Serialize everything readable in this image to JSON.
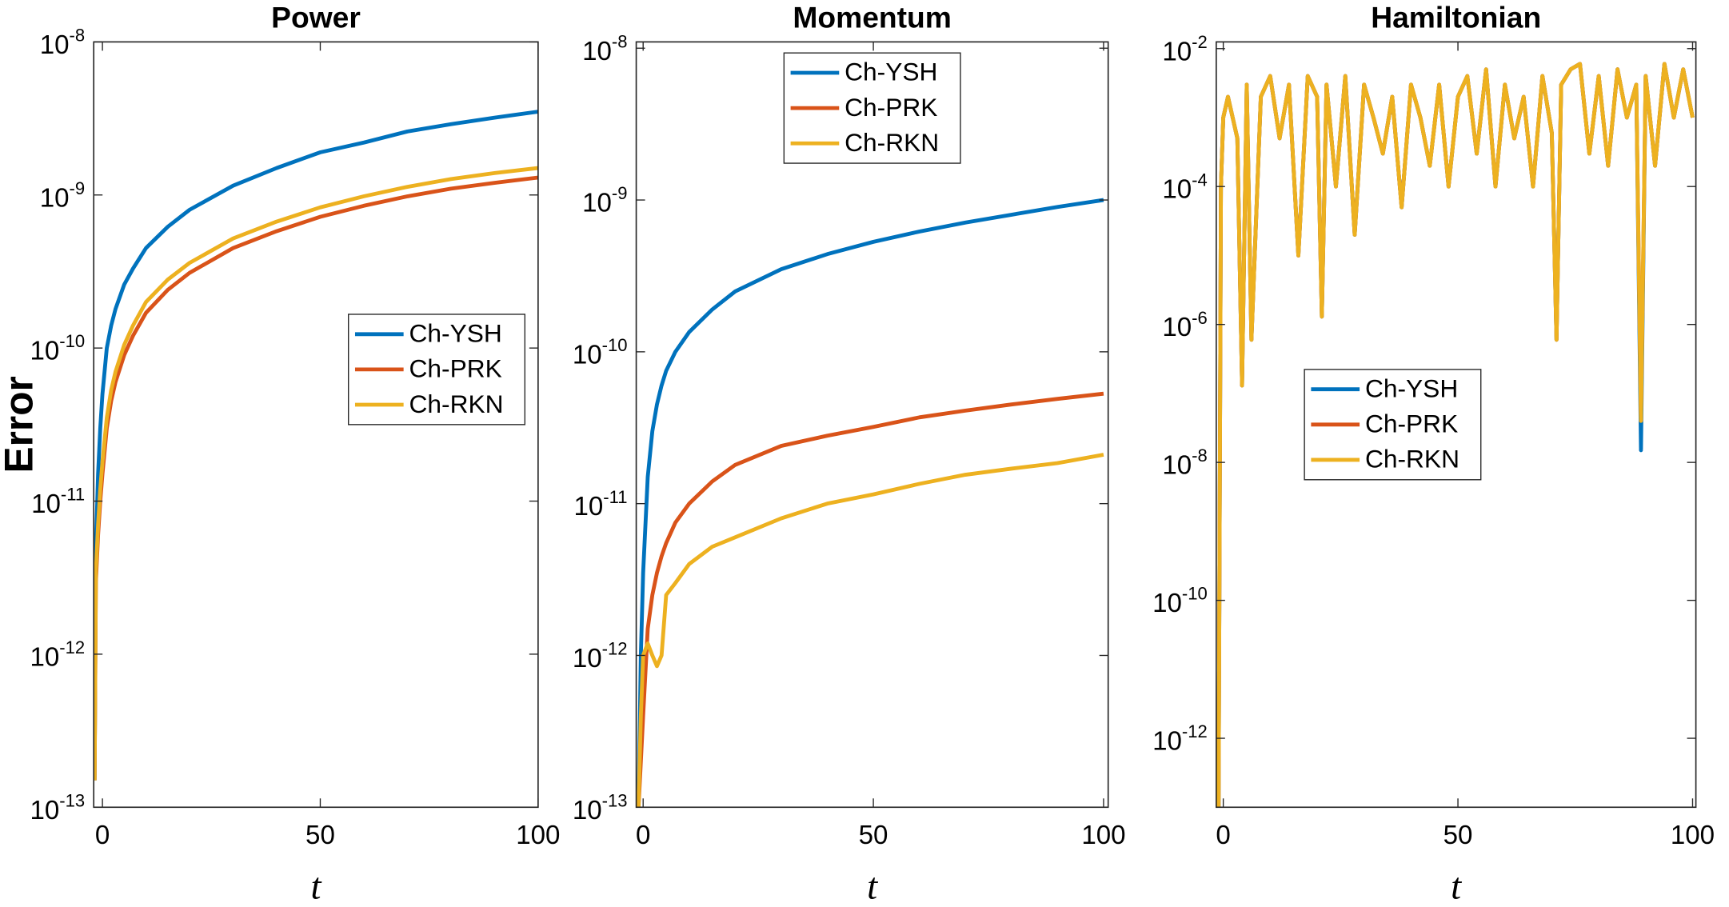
{
  "chart_data": [
    {
      "type": "line",
      "title": "Power",
      "ylabel": "Error",
      "xlabel": "t",
      "log_y": true,
      "legend_loc": "east",
      "x": [
        -1.8,
        -1.5,
        -1,
        -0.5,
        0,
        1,
        2,
        3,
        5,
        7,
        10,
        15,
        20,
        30,
        40,
        50,
        60,
        70,
        80,
        90,
        100
      ],
      "series": [
        {
          "name": "Ch-YSH",
          "color": "#0072bd",
          "values": [
            1.5e-13,
            5e-12,
            1.5e-11,
            3e-11,
            5e-11,
            1e-10,
            1.4e-10,
            1.8e-10,
            2.6e-10,
            3.3e-10,
            4.5e-10,
            6.2e-10,
            8e-10,
            1.15e-09,
            1.5e-09,
            1.9e-09,
            2.2e-09,
            2.6e-09,
            2.9e-09,
            3.2e-09,
            3.5e-09
          ]
        },
        {
          "name": "Ch-PRK",
          "color": "#d95319",
          "values": [
            1.5e-13,
            3e-12,
            6e-12,
            1e-11,
            1.5e-11,
            3e-11,
            4.5e-11,
            6e-11,
            9e-11,
            1.2e-10,
            1.7e-10,
            2.4e-10,
            3.1e-10,
            4.5e-10,
            5.8e-10,
            7.2e-10,
            8.5e-10,
            9.8e-10,
            1.1e-09,
            1.2e-09,
            1.3e-09
          ]
        },
        {
          "name": "Ch-RKN",
          "color": "#edb120",
          "values": [
            1.5e-13,
            3.5e-12,
            7e-12,
            1.2e-11,
            1.8e-11,
            3.5e-11,
            5.3e-11,
            7e-11,
            1.05e-10,
            1.4e-10,
            2e-10,
            2.8e-10,
            3.6e-10,
            5.2e-10,
            6.7e-10,
            8.3e-10,
            9.8e-10,
            1.13e-09,
            1.27e-09,
            1.39e-09,
            1.5e-09
          ]
        }
      ],
      "xlim": [
        -2,
        100
      ],
      "xticks": [
        0,
        50,
        100
      ],
      "ylim": [
        1e-13,
        1e-08
      ],
      "yticks": [
        {
          "value": 1e-08,
          "label": "10-8"
        },
        {
          "value": 1e-09,
          "label": "10-9"
        },
        {
          "value": 1e-10,
          "label": "10-10"
        },
        {
          "value": 1e-11,
          "label": "10-11"
        },
        {
          "value": 1e-12,
          "label": "10-12"
        },
        {
          "value": 1e-13,
          "label": "10-13"
        }
      ]
    },
    {
      "type": "line",
      "title": "Momentum",
      "xlabel": "t",
      "log_y": true,
      "legend_loc": "north",
      "x": [
        -1,
        -0.5,
        0,
        1,
        2,
        3,
        4,
        5,
        7,
        10,
        15,
        20,
        30,
        40,
        50,
        60,
        70,
        80,
        90,
        100
      ],
      "series": [
        {
          "name": "Ch-YSH",
          "color": "#0072bd",
          "values": [
            1e-13,
            1e-12,
            3.5e-12,
            1.5e-11,
            3e-11,
            4.5e-11,
            6e-11,
            7.5e-11,
            1e-10,
            1.35e-10,
            1.9e-10,
            2.5e-10,
            3.5e-10,
            4.4e-10,
            5.3e-10,
            6.2e-10,
            7.1e-10,
            8e-10,
            9e-10,
            1e-09
          ]
        },
        {
          "name": "Ch-PRK",
          "color": "#d95319",
          "values": [
            1e-13,
            2e-13,
            4e-13,
            1.5e-12,
            2.5e-12,
            3.5e-12,
            4.5e-12,
            5.5e-12,
            7.5e-12,
            1e-11,
            1.4e-11,
            1.8e-11,
            2.4e-11,
            2.8e-11,
            3.2e-11,
            3.7e-11,
            4.1e-11,
            4.5e-11,
            4.9e-11,
            5.3e-11
          ]
        },
        {
          "name": "Ch-RKN",
          "color": "#edb120",
          "values": [
            1e-13,
            4e-13,
            1e-12,
            1.2e-12,
            1e-12,
            8.5e-13,
            1e-12,
            2.5e-12,
            3e-12,
            4e-12,
            5.2e-12,
            6e-12,
            8e-12,
            1e-11,
            1.15e-11,
            1.35e-11,
            1.55e-11,
            1.7e-11,
            1.85e-11,
            2.1e-11
          ]
        }
      ],
      "xlim": [
        -1.5,
        101
      ],
      "xticks": [
        0,
        50,
        100
      ],
      "ylim": [
        1e-13,
        1.1e-08
      ],
      "yticks": [
        {
          "value": 1e-08,
          "label": "10-8"
        },
        {
          "value": 1e-09,
          "label": "10-9"
        },
        {
          "value": 1e-10,
          "label": "10-10"
        },
        {
          "value": 1e-11,
          "label": "10-11"
        },
        {
          "value": 1e-12,
          "label": "10-12"
        },
        {
          "value": 1e-13,
          "label": "10-13"
        }
      ]
    },
    {
      "type": "line",
      "title": "Hamiltonian",
      "xlabel": "t",
      "log_y": true,
      "legend_loc": "west",
      "x": [
        -1.5,
        -1,
        -0.5,
        0,
        1,
        2,
        3,
        4,
        5,
        6,
        8,
        10,
        12,
        14,
        16,
        18,
        20,
        21,
        22,
        24,
        26,
        28,
        30,
        32,
        34,
        36,
        38,
        40,
        42,
        44,
        46,
        48,
        50,
        52,
        54,
        56,
        58,
        60,
        62,
        64,
        66,
        68,
        70,
        71,
        72,
        74,
        76,
        78,
        80,
        82,
        84,
        86,
        88,
        89,
        90,
        92,
        94,
        96,
        98,
        100
      ],
      "series": [
        {
          "name": "Ch-YSH",
          "color": "#0072bd",
          "values": [
            1e-13,
            1e-13,
            0.0001,
            0.001,
            0.002,
            0.001,
            0.0005,
            1.3e-07,
            0.003,
            6e-07,
            0.002,
            0.004,
            0.0005,
            0.003,
            1e-05,
            0.004,
            0.002,
            1.3e-06,
            0.003,
            0.0001,
            0.004,
            2e-05,
            0.003,
            0.001,
            0.0003,
            0.002,
            5e-05,
            0.003,
            0.001,
            0.0002,
            0.003,
            0.0001,
            0.002,
            0.004,
            0.0003,
            0.005,
            0.0001,
            0.003,
            0.0005,
            0.002,
            0.0001,
            0.004,
            0.0006,
            6e-07,
            0.003,
            0.005,
            0.006,
            0.0003,
            0.004,
            0.0002,
            0.005,
            0.001,
            0.003,
            1.5e-08,
            0.004,
            0.0002,
            0.006,
            0.001,
            0.005,
            0.001
          ]
        },
        {
          "name": "Ch-PRK",
          "color": "#d95319",
          "values": [
            1e-13,
            1e-13,
            0.0001,
            0.001,
            0.002,
            0.001,
            0.0005,
            1.3e-07,
            0.003,
            6e-07,
            0.002,
            0.004,
            0.0005,
            0.003,
            1e-05,
            0.004,
            0.002,
            1.3e-06,
            0.003,
            0.0001,
            0.004,
            2e-05,
            0.003,
            0.001,
            0.0003,
            0.002,
            5e-05,
            0.003,
            0.001,
            0.0002,
            0.003,
            0.0001,
            0.002,
            0.004,
            0.0003,
            0.005,
            0.0001,
            0.003,
            0.0005,
            0.002,
            0.0001,
            0.004,
            0.0006,
            6e-07,
            0.003,
            0.005,
            0.006,
            0.0003,
            0.004,
            0.0002,
            0.005,
            0.001,
            0.003,
            4e-08,
            0.004,
            0.0002,
            0.006,
            0.001,
            0.005,
            0.001
          ]
        },
        {
          "name": "Ch-RKN",
          "color": "#edb120",
          "values": [
            1e-13,
            1e-13,
            0.0001,
            0.001,
            0.002,
            0.001,
            0.0005,
            1.3e-07,
            0.003,
            6e-07,
            0.002,
            0.004,
            0.0005,
            0.003,
            1e-05,
            0.004,
            0.002,
            1.3e-06,
            0.003,
            0.0001,
            0.004,
            2e-05,
            0.003,
            0.001,
            0.0003,
            0.002,
            5e-05,
            0.003,
            0.001,
            0.0002,
            0.003,
            0.0001,
            0.002,
            0.004,
            0.0003,
            0.005,
            0.0001,
            0.003,
            0.0005,
            0.002,
            0.0001,
            0.004,
            0.0006,
            6e-07,
            0.003,
            0.005,
            0.006,
            0.0003,
            0.004,
            0.0002,
            0.005,
            0.001,
            0.003,
            4e-08,
            0.004,
            0.0002,
            0.006,
            0.001,
            0.005,
            0.001
          ]
        }
      ],
      "xlim": [
        -1.5,
        100.7
      ],
      "xticks": [
        0,
        50,
        100
      ],
      "ylim": [
        1e-13,
        0.0125
      ],
      "yticks": [
        {
          "value": 0.01,
          "label": "10-2"
        },
        {
          "value": 0.0001,
          "label": "10-4"
        },
        {
          "value": 1e-06,
          "label": "10-6"
        },
        {
          "value": 1e-08,
          "label": "10-8"
        },
        {
          "value": 1e-10,
          "label": "10-10"
        },
        {
          "value": 1e-12,
          "label": "10-12"
        }
      ]
    }
  ]
}
